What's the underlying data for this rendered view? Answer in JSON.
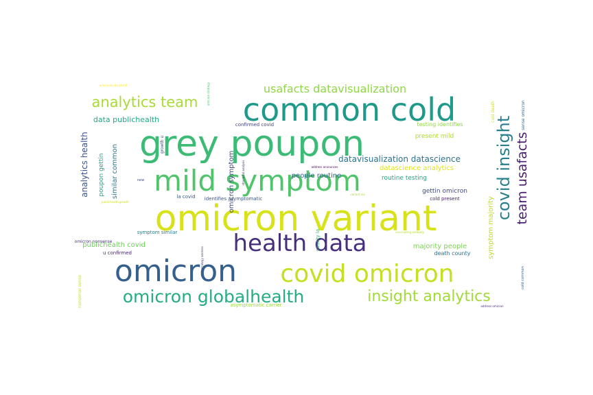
{
  "words": [
    {
      "text": "omicron variant",
      "color": "#d7e219"
    },
    {
      "text": "common cold",
      "color": "#1f9a8a"
    },
    {
      "text": "grey poupon",
      "color": "#3bbb75"
    },
    {
      "text": "mild symptom",
      "color": "#50c46a"
    },
    {
      "text": "health data",
      "color": "#46307e"
    },
    {
      "text": "omicron",
      "color": "#355f8d"
    },
    {
      "text": "covid omicron",
      "color": "#c5e021"
    },
    {
      "text": "omicron globalhealth",
      "color": "#25ac82"
    },
    {
      "text": "insight analytics",
      "color": "#a2da37"
    },
    {
      "text": "analytics team",
      "color": "#a8db34"
    },
    {
      "text": "usafacts datavisualization",
      "color": "#8fd744"
    },
    {
      "text": "covid insight",
      "color": "#277f8e"
    },
    {
      "text": "team usafacts",
      "color": "#481f70"
    },
    {
      "text": "data publichealth",
      "color": "#22a884"
    },
    {
      "text": "datavisualization datascience",
      "color": "#2c728e"
    },
    {
      "text": "datascience analytics",
      "color": "#dde318"
    },
    {
      "text": "analytics health",
      "color": "#3b528b"
    },
    {
      "text": "similar common",
      "color": "#2a788e"
    },
    {
      "text": "poupon gettin",
      "color": "#1f9e89"
    },
    {
      "text": "omicron symptom",
      "color": "#3e4a89"
    },
    {
      "text": "people routine",
      "color": "#32648e"
    },
    {
      "text": "routine testing",
      "color": "#20a486"
    },
    {
      "text": "gettin omicron",
      "color": "#3e4989"
    },
    {
      "text": "symptom majority",
      "color": "#b8de29"
    },
    {
      "text": "majority people",
      "color": "#7ad151"
    },
    {
      "text": "publichealth covid",
      "color": "#6ccd5a"
    },
    {
      "text": "present mild",
      "color": "#addc30"
    },
    {
      "text": "testing identifies",
      "color": "#90d743"
    },
    {
      "text": "confirmed covid",
      "color": "#414487"
    },
    {
      "text": "cold present",
      "color": "#482173"
    },
    {
      "text": "death county",
      "color": "#2e6f8e"
    },
    {
      "text": "identifies asymptomatic",
      "color": "#3a548c"
    },
    {
      "text": "la covid",
      "color": "#39568c"
    },
    {
      "text": "county la",
      "color": "#35b779"
    },
    {
      "text": "omicron nonsense",
      "color": "#46327e"
    },
    {
      "text": "symptom similar",
      "color": "#297b8e"
    },
    {
      "text": "u confirmed",
      "color": "#482576"
    },
    {
      "text": "asymptomatic carrier",
      "color": "#9bd93c"
    },
    {
      "text": "nonsense sense",
      "color": "#c8e020"
    },
    {
      "text": "sense omicron",
      "color": "#31688e"
    },
    {
      "text": "cold death",
      "color": "#d2e21b"
    },
    {
      "text": "cold common",
      "color": "#375b8d"
    },
    {
      "text": "growth u",
      "color": "#404588"
    },
    {
      "text": "new",
      "color": "#3d4e8a"
    },
    {
      "text": "address announces",
      "color": "#440154"
    },
    {
      "text": "address omicron",
      "color": "#472a7a"
    },
    {
      "text": "announce structural",
      "color": "#fde725"
    },
    {
      "text": "publichealth growth",
      "color": "#d0e11c"
    },
    {
      "text": "strategy address",
      "color": "#3f4788"
    },
    {
      "text": "structural analysis",
      "color": "#472d7b"
    },
    {
      "text": "variant via",
      "color": "#a0da39"
    },
    {
      "text": "vaccinating antibody",
      "color": "#b5de2b"
    },
    {
      "text": "omicron strategy",
      "color": "#4ac16d"
    }
  ]
}
